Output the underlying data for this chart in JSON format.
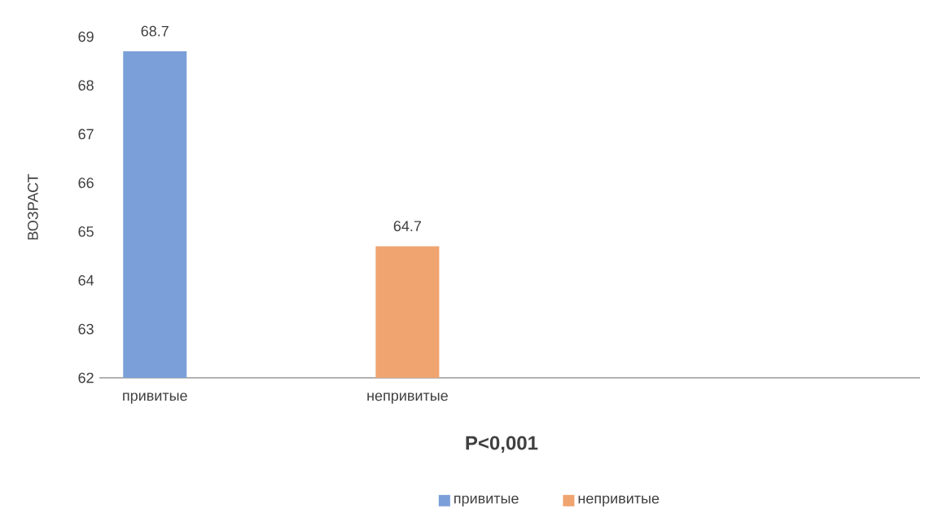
{
  "chart_data": {
    "type": "bar",
    "ylabel": "ВОЗРАСТ",
    "categories": [
      "привитые",
      "непривитые"
    ],
    "series": [
      {
        "name": "привитые",
        "color": "#7b9fd8",
        "values": [
          68.7,
          null
        ],
        "value_labels": [
          "68.7",
          null
        ]
      },
      {
        "name": "непривитые",
        "color": "#f0a46f",
        "values": [
          null,
          64.7
        ],
        "value_labels": [
          null,
          "64.7"
        ]
      }
    ],
    "ylim": [
      62,
      69
    ],
    "yticks": [
      62,
      63,
      64,
      65,
      66,
      67,
      68,
      69
    ],
    "legend": "bottom",
    "annotations": [
      "**P<0,001**"
    ]
  }
}
